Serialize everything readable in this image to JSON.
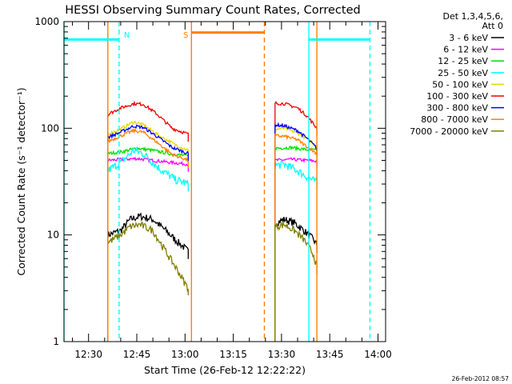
{
  "chart_data": {
    "type": "line",
    "title": "HESSI Observing Summary Count Rates, Corrected",
    "xlabel": "Start Time (26-Feb-12 12:22:22)",
    "ylabel": "Corrected Count Rate (s⁻¹ detector⁻¹)",
    "y_scale": "log",
    "ylim": [
      1,
      1000
    ],
    "y_ticks": [
      {
        "value": 1,
        "label": "1"
      },
      {
        "value": 10,
        "label": "10"
      },
      {
        "value": 100,
        "label": "100"
      },
      {
        "value": 1000,
        "label": "1000"
      }
    ],
    "xlim": [
      "12:22:22",
      "14:02:22"
    ],
    "x_ticks": [
      "12:30",
      "12:45",
      "13:00",
      "13:15",
      "13:30",
      "13:45",
      "14:00"
    ],
    "legend": {
      "position": "right",
      "header": [
        "Det 1,3,4,5,6,",
        "Att 0"
      ],
      "entries": [
        {
          "label": "3 - 6 keV",
          "color": "#000000"
        },
        {
          "label": "6 - 12 keV",
          "color": "#ff00ff"
        },
        {
          "label": "12 - 25 keV",
          "color": "#00e000"
        },
        {
          "label": "25 - 50 keV",
          "color": "#00ffff"
        },
        {
          "label": "50 - 100 keV",
          "color": "#e8d800"
        },
        {
          "label": "100 - 300 keV",
          "color": "#ee0000"
        },
        {
          "label": "300 - 800 keV",
          "color": "#0000ff"
        },
        {
          "label": "800 - 7000 keV",
          "color": "#ff8000"
        },
        {
          "label": "7000 - 20000 keV",
          "color": "#808000"
        }
      ]
    },
    "markers": [
      {
        "label": "N",
        "time": "12:39:30",
        "color": "#00ffff"
      },
      {
        "label": "S",
        "time": "13:02:00",
        "color": "#ff8000"
      }
    ],
    "intervals": [
      {
        "color": "#ff8000",
        "kind": "solid",
        "time": "12:36:00"
      },
      {
        "color": "#00ffff",
        "kind": "dashed",
        "time": "12:39:30"
      },
      {
        "color": "#ff8000",
        "kind": "solid",
        "time": "13:02:00"
      },
      {
        "color": "#ff8000",
        "kind": "dashed",
        "time": "13:24:40"
      },
      {
        "color": "#00ffff",
        "kind": "solid",
        "time": "13:38:30"
      },
      {
        "color": "#ff8000",
        "kind": "solid",
        "time": "13:41:00"
      },
      {
        "color": "#00ffff",
        "kind": "dashed",
        "time": "13:57:30"
      },
      {
        "color": "#00ffff",
        "kind": "solid",
        "time": "12:22:22"
      }
    ],
    "flag_bars": [
      {
        "color": "#00ffff",
        "start": "12:22:22",
        "end": "12:39:30",
        "level": 680
      },
      {
        "color": "#ff8000",
        "start": "13:02:00",
        "end": "13:24:40",
        "level": 790
      },
      {
        "color": "#00ffff",
        "start": "13:38:30",
        "end": "13:57:30",
        "level": 680
      }
    ],
    "series": [
      {
        "name": "3 - 6 keV",
        "color": "#000000",
        "segments": [
          {
            "x": [
              "12:36",
              "12:40",
              "12:43",
              "12:46",
              "12:50",
              "12:54",
              "12:57",
              "13:00",
              "13:01"
            ],
            "y": [
              10,
              11,
              14,
              15,
              14,
              11,
              9,
              7.5,
              7
            ]
          },
          {
            "x": [
              "13:28",
              "13:31",
              "13:34",
              "13:37",
              "13:40",
              "13:41"
            ],
            "y": [
              13,
              14,
              13,
              11,
              9,
              8
            ]
          }
        ]
      },
      {
        "name": "6 - 12 keV",
        "color": "#ff00ff",
        "segments": [
          {
            "x": [
              "12:36",
              "12:40",
              "12:45",
              "12:50",
              "12:55",
              "13:01"
            ],
            "y": [
              50,
              51,
              52,
              50,
              48,
              46
            ]
          },
          {
            "x": [
              "13:28",
              "13:33",
              "13:38",
              "13:41"
            ],
            "y": [
              50,
              51,
              50,
              49
            ]
          }
        ]
      },
      {
        "name": "12 - 25 keV",
        "color": "#00e000",
        "segments": [
          {
            "x": [
              "12:36",
              "12:40",
              "12:45",
              "12:50",
              "12:55",
              "13:01"
            ],
            "y": [
              58,
              60,
              65,
              62,
              58,
              55
            ]
          },
          {
            "x": [
              "13:28",
              "13:33",
              "13:38",
              "13:41"
            ],
            "y": [
              65,
              66,
              63,
              62
            ]
          }
        ]
      },
      {
        "name": "25 - 50 keV",
        "color": "#00ffff",
        "segments": [
          {
            "x": [
              "12:36",
              "12:40",
              "12:44",
              "12:47",
              "12:52",
              "12:57",
              "13:01"
            ],
            "y": [
              40,
              48,
              62,
              58,
              42,
              33,
              30
            ]
          },
          {
            "x": [
              "13:28",
              "13:31",
              "13:35",
              "13:38",
              "13:41"
            ],
            "y": [
              45,
              46,
              40,
              35,
              31
            ]
          }
        ]
      },
      {
        "name": "50 - 100 keV",
        "color": "#e8d800",
        "segments": [
          {
            "x": [
              "12:36",
              "12:40",
              "12:44",
              "12:47",
              "12:52",
              "12:57",
              "13:01"
            ],
            "y": [
              88,
              98,
              115,
              108,
              85,
              70,
              62
            ]
          },
          {
            "x": [
              "13:28",
              "13:31",
              "13:35",
              "13:38",
              "13:41"
            ],
            "y": [
              98,
              100,
              90,
              80,
              68
            ]
          }
        ]
      },
      {
        "name": "100 - 300 keV",
        "color": "#ee0000",
        "segments": [
          {
            "x": [
              "12:36",
              "12:40",
              "12:44",
              "12:47",
              "12:51",
              "12:56",
              "13:01"
            ],
            "y": [
              135,
              155,
              170,
              168,
              138,
              100,
              88
            ]
          },
          {
            "x": [
              "13:28",
              "13:31",
              "13:35",
              "13:38",
              "13:41"
            ],
            "y": [
              172,
              170,
              155,
              130,
              100
            ]
          }
        ]
      },
      {
        "name": "300 - 800 keV",
        "color": "#0000ff",
        "segments": [
          {
            "x": [
              "12:36",
              "12:40",
              "12:44",
              "12:47",
              "12:51",
              "12:56",
              "13:01"
            ],
            "y": [
              82,
              92,
              105,
              102,
              85,
              66,
              58
            ]
          },
          {
            "x": [
              "13:28",
              "13:31",
              "13:35",
              "13:38",
              "13:41"
            ],
            "y": [
              108,
              105,
              95,
              80,
              65
            ]
          }
        ]
      },
      {
        "name": "800 - 7000 keV",
        "color": "#ff8000",
        "segments": [
          {
            "x": [
              "12:36",
              "12:40",
              "12:44",
              "12:47",
              "12:51",
              "12:56",
              "13:01"
            ],
            "y": [
              75,
              85,
              95,
              92,
              75,
              57,
              50
            ]
          },
          {
            "x": [
              "13:28",
              "13:31",
              "13:35",
              "13:38",
              "13:41"
            ],
            "y": [
              85,
              84,
              78,
              67,
              58
            ]
          }
        ]
      },
      {
        "name": "7000 - 20000 keV",
        "color": "#808000",
        "segments": [
          {
            "x": [
              "12:36",
              "12:40",
              "12:43",
              "12:46",
              "12:50",
              "12:54",
              "12:58",
              "13:00",
              "13:01"
            ],
            "y": [
              8.5,
              10,
              12,
              12.5,
              11,
              7,
              4.5,
              3.5,
              3.2
            ]
          },
          {
            "x": [
              "13:28",
              "13:31",
              "13:34",
              "13:37",
              "13:40",
              "13:41"
            ],
            "y": [
              12,
              12.5,
              11,
              9,
              6.5,
              5
            ]
          }
        ]
      }
    ]
  },
  "footer": {
    "timestamp": "26-Feb-2012 08:57"
  }
}
